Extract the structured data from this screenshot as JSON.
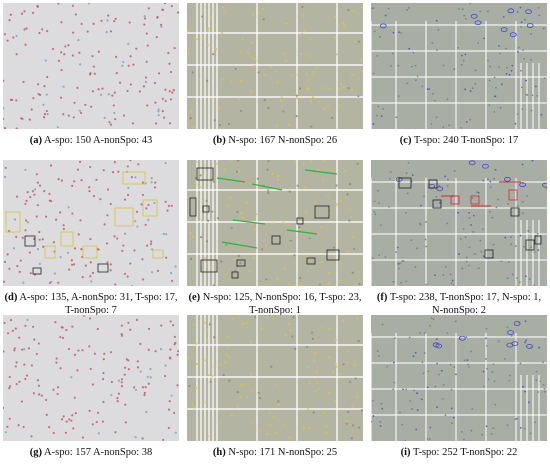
{
  "figure": {
    "panels": [
      {
        "letter": "(a)",
        "text": "A-spo: 150 A-nonSpo: 43",
        "kind": "a",
        "boxed": false
      },
      {
        "letter": "(b)",
        "text": "N-spo: 167 N-nonSpo: 26",
        "kind": "n",
        "boxed": false
      },
      {
        "letter": "(c)",
        "text": "T-spo: 240 T-nonSpo: 17",
        "kind": "t",
        "boxed": false
      },
      {
        "letter": "(d)",
        "text": "A-spo: 135, A-nonSpo: 31, T-spo: 17, T-nonSpo: 7",
        "kind": "a",
        "boxed": true
      },
      {
        "letter": "(e)",
        "text": "N-spo: 125, N-nonSpo: 16, T-spo: 23, T-nonSpo: 1",
        "kind": "n",
        "boxed": true
      },
      {
        "letter": "(f)",
        "text": "T-spo: 238, T-nonSpo: 17, N-spo: 1, N-nonSpo: 2",
        "kind": "t",
        "boxed": true
      },
      {
        "letter": "(g)",
        "text": "A-spo: 157 A-nonSpo: 38",
        "kind": "a",
        "boxed": false
      },
      {
        "letter": "(h)",
        "text": "N-spo: 171 N-nonSpo: 25",
        "kind": "n",
        "boxed": false
      },
      {
        "letter": "(i)",
        "text": "T-spo: 252 T-nonSpo: 22",
        "kind": "t",
        "boxed": false
      }
    ],
    "colors": {
      "a_bg": "#dcdcdf",
      "n_bg": "#b4b4a2",
      "t_bg": "#a9aea4",
      "grid": "#ffffff",
      "spot_red": "#c25a6a",
      "spot_yellow": "#d8c64a",
      "spot_blue": "#4a4ac8",
      "box_black": "#222222",
      "box_yellow": "#d7c231",
      "box_green": "#2fb23a",
      "box_red": "#cc2d2d"
    }
  }
}
